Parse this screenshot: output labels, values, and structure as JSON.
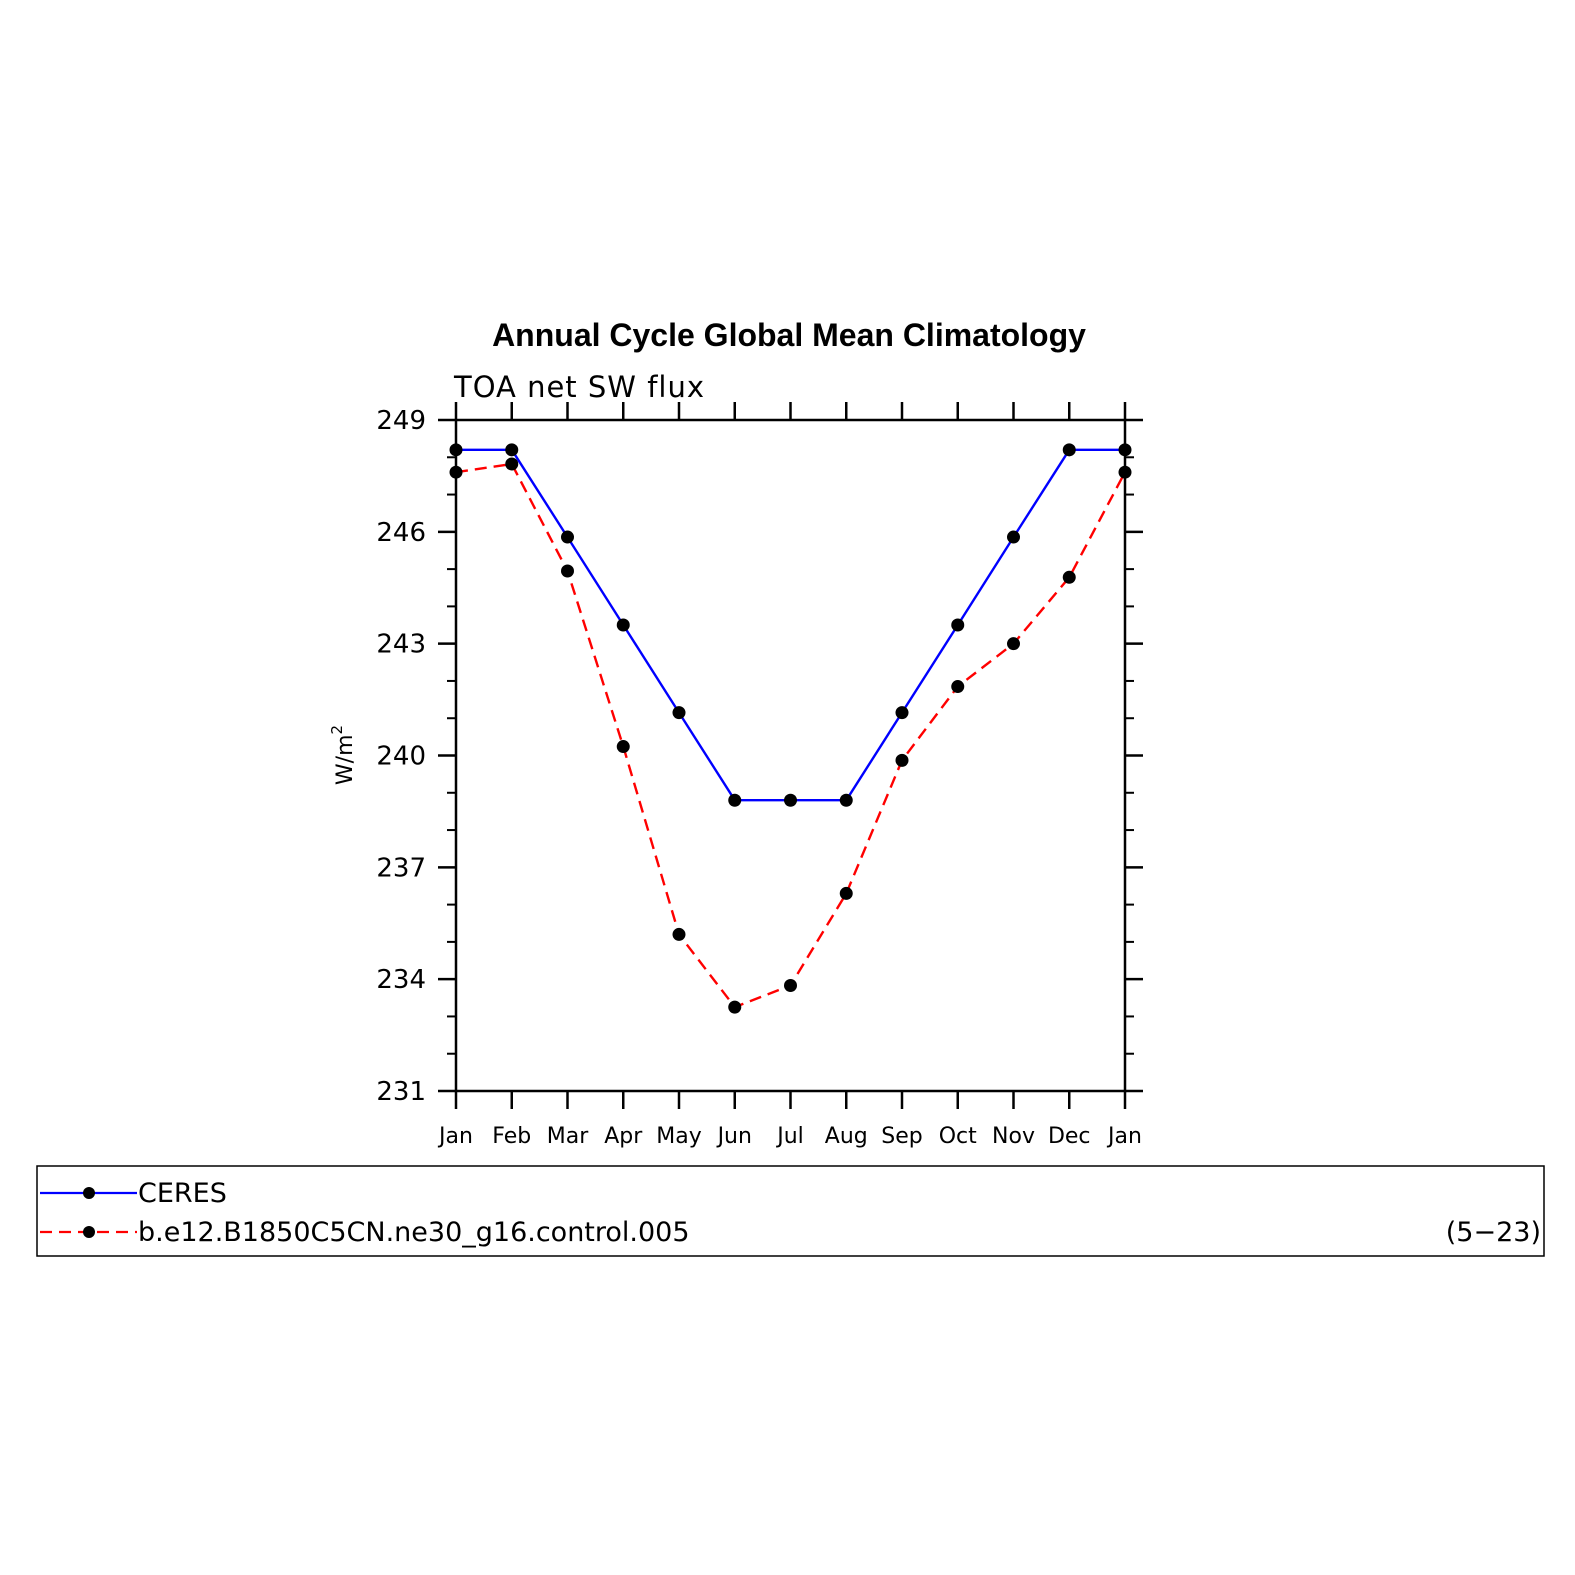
{
  "chart_data": {
    "type": "line",
    "title": "Annual Cycle Global Mean Climatology",
    "subtitle": "TOA  net  SW  flux",
    "ylabel": "W/m",
    "ylabel_superscript": "2",
    "xlabel": "",
    "categories": [
      "Jan",
      "Feb",
      "Mar",
      "Apr",
      "May",
      "Jun",
      "Jul",
      "Aug",
      "Sep",
      "Oct",
      "Nov",
      "Dec",
      "Jan"
    ],
    "ylim": [
      231,
      249
    ],
    "yticks": [
      "249",
      "246",
      "243",
      "240",
      "237",
      "234",
      "231"
    ],
    "ytick_values": [
      249,
      246,
      243,
      240,
      237,
      234,
      231
    ],
    "grid": false,
    "legend_placement": "bottom",
    "range_note": "(5−23)",
    "series": [
      {
        "name": "CERES",
        "color": "#0000ff",
        "dash": "solid",
        "values": [
          248.2,
          248.2,
          245.86,
          243.5,
          241.15,
          238.8,
          238.8,
          238.8,
          241.15,
          243.5,
          245.86,
          248.2,
          248.2
        ]
      },
      {
        "name": "b.e12.B1850C5CN.ne30_g16.control.005",
        "color": "#ff0000",
        "dash": "dashed",
        "values": [
          247.6,
          247.82,
          244.95,
          240.24,
          235.2,
          233.25,
          233.83,
          236.3,
          239.87,
          241.85,
          243,
          244.78,
          247.6
        ]
      }
    ]
  }
}
